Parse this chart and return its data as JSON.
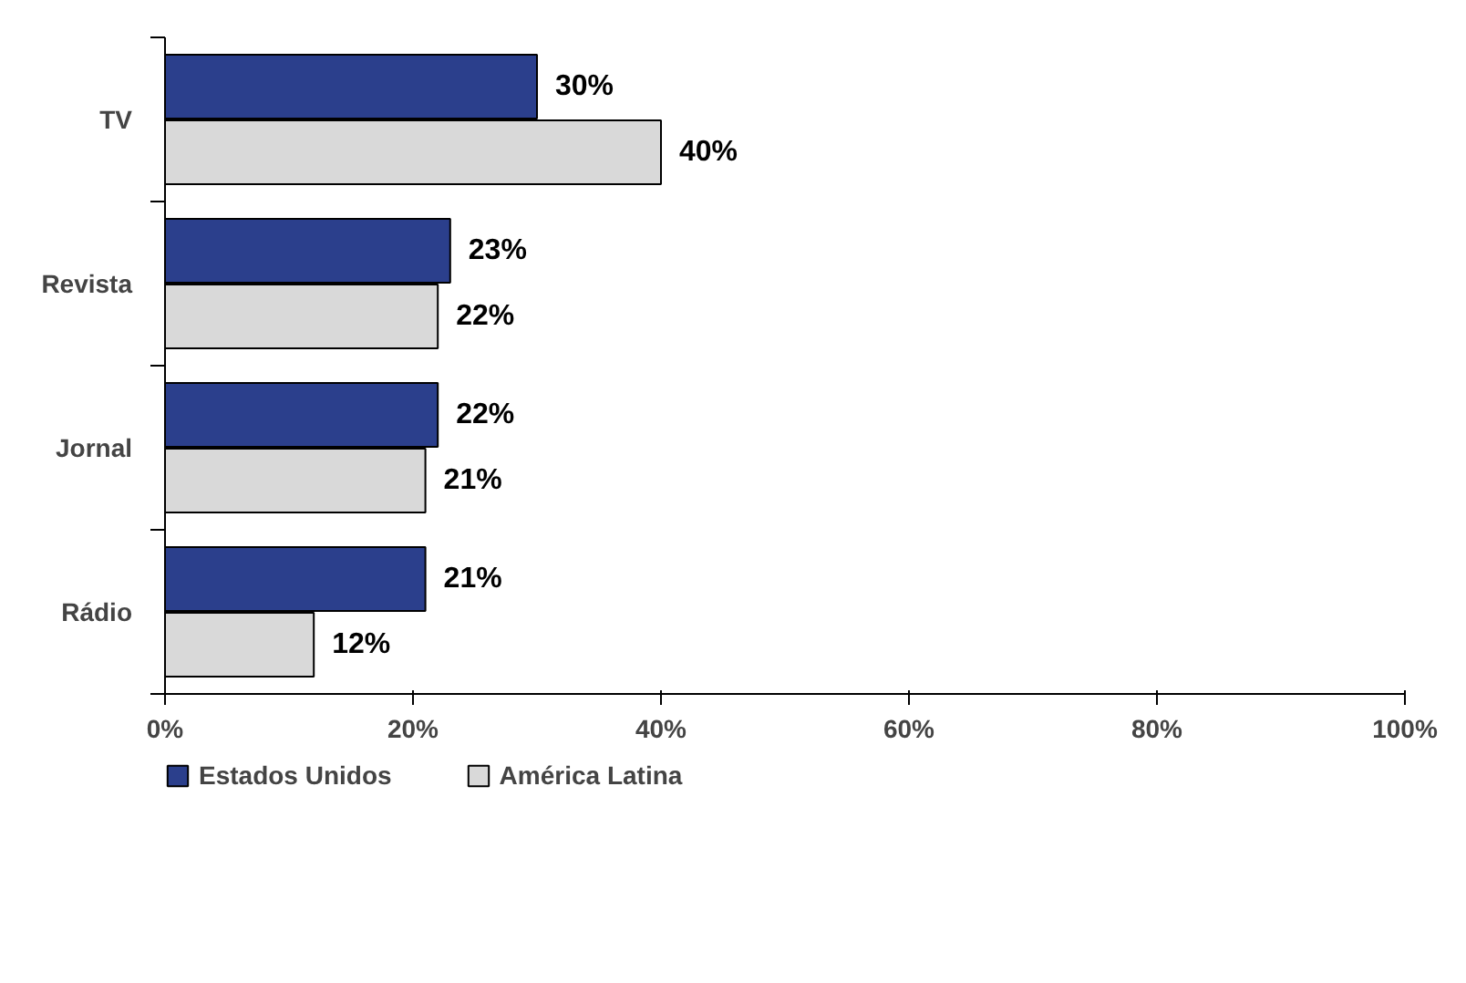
{
  "chart_data": {
    "type": "bar",
    "orientation": "horizontal",
    "categories": [
      "TV",
      "Revista",
      "Jornal",
      "Rádio"
    ],
    "series": [
      {
        "name": "Estados Unidos",
        "color": "#2b3f8c",
        "values": [
          30,
          23,
          22,
          21
        ],
        "value_labels": [
          "30%",
          "23%",
          "22%",
          "21%"
        ]
      },
      {
        "name": "América Latina",
        "color": "#d9d9d9",
        "values": [
          40,
          22,
          21,
          12
        ],
        "value_labels": [
          "40%",
          "22%",
          "21%",
          "12%"
        ]
      }
    ],
    "xlim": [
      0,
      100
    ],
    "xticks": [
      {
        "value": 0,
        "label": "0%"
      },
      {
        "value": 20,
        "label": "20%"
      },
      {
        "value": 40,
        "label": "40%"
      },
      {
        "value": 60,
        "label": "60%"
      },
      {
        "value": 80,
        "label": "80%"
      },
      {
        "value": 100,
        "label": "100%"
      }
    ],
    "grid": false,
    "legend": "bottom left"
  }
}
